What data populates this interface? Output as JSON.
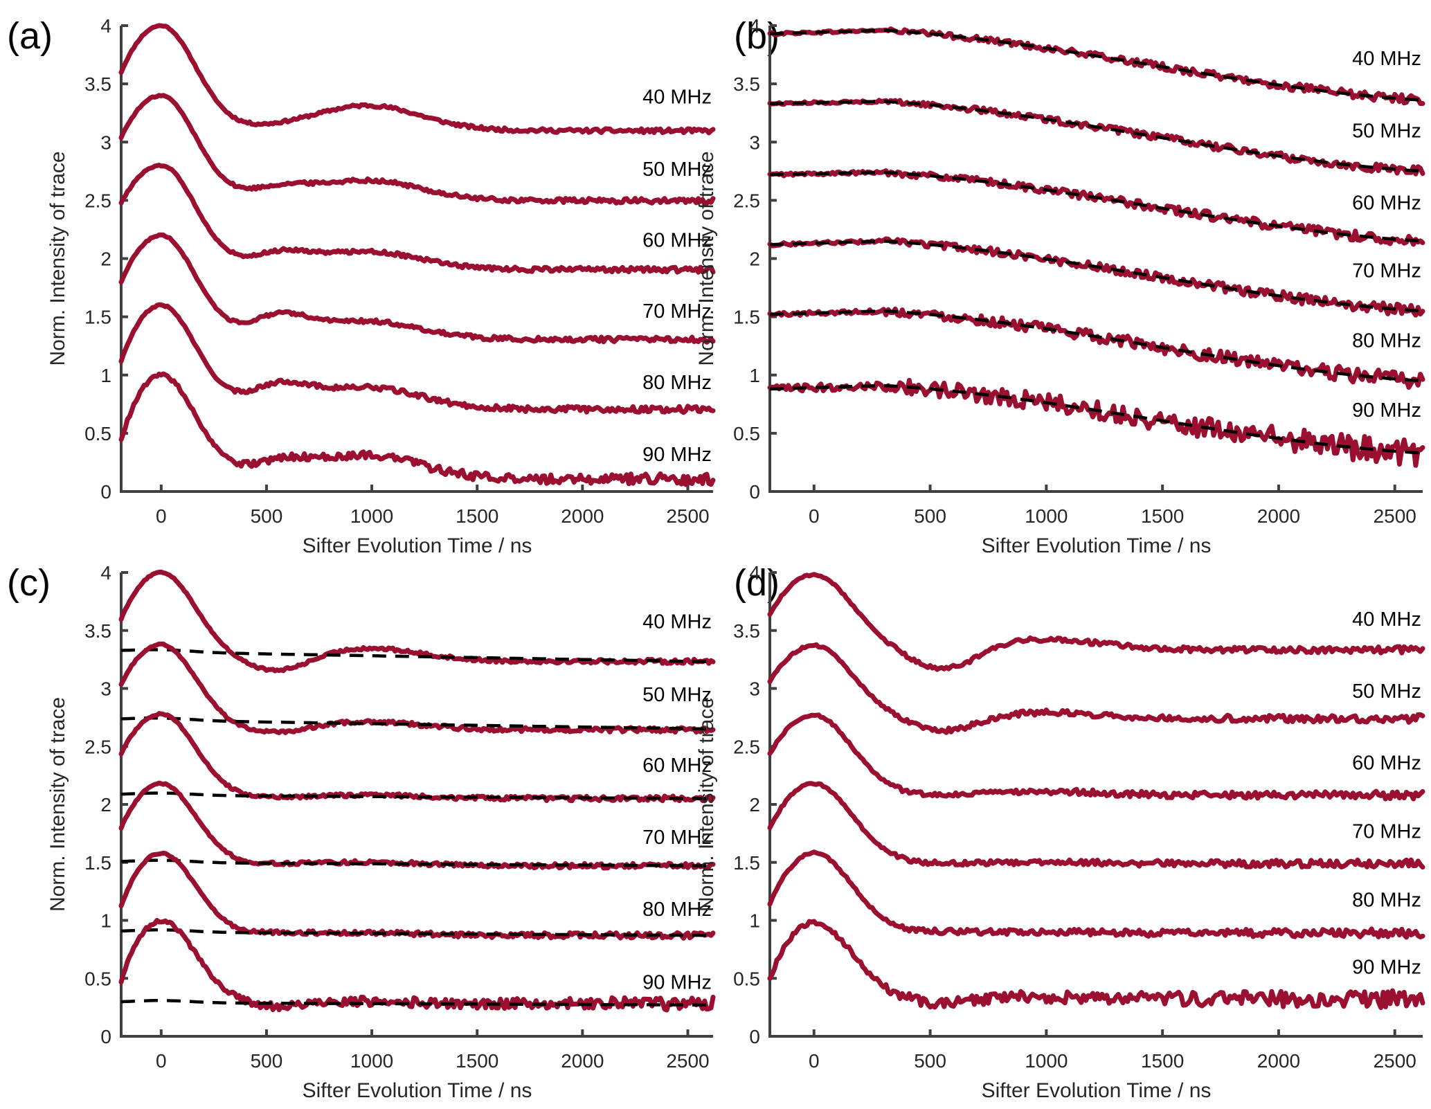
{
  "figure": {
    "panel_labels": [
      "(a)",
      "(b)",
      "(c)",
      "(d)"
    ],
    "colors": {
      "trace": "#9b1030",
      "fit": "#000000",
      "axis": "#404040"
    }
  },
  "chart_data": [
    {
      "panel": "(a)",
      "type": "line",
      "title": "",
      "xlabel": "Sifter Evolution Time / ns",
      "ylabel": "Norm. Intensity of trace",
      "xlim": [
        -190,
        2620
      ],
      "ylim": [
        0,
        4
      ],
      "xticks": [
        0,
        500,
        1000,
        1500,
        2000,
        2500
      ],
      "xtick_labels": [
        "0",
        "500",
        "1000",
        "1500",
        "2000",
        "2500"
      ],
      "yticks": [
        0,
        0.5,
        1,
        1.5,
        2,
        2.5,
        3,
        3.5,
        4
      ],
      "ytick_labels": [
        "0",
        "0.5",
        "1",
        "1.5",
        "2",
        "2.5",
        "3",
        "3.5",
        "4"
      ],
      "grid": false,
      "has_fit": false,
      "series": [
        {
          "name": "40 MHz",
          "offset": 3.0,
          "start": 3.6,
          "peak": 4.0,
          "tail": 3.09,
          "dip": 3.1,
          "bump": 3.3,
          "noise": 0.01
        },
        {
          "name": "50 MHz",
          "offset": 2.4,
          "start": 3.04,
          "peak": 3.4,
          "tail": 2.49,
          "dip": 2.58,
          "bump": 2.66,
          "noise": 0.012
        },
        {
          "name": "60 MHz",
          "offset": 1.8,
          "start": 2.48,
          "peak": 2.8,
          "tail": 1.9,
          "dip": 2.02,
          "bump": 2.05,
          "noise": 0.012
        },
        {
          "name": "70 MHz",
          "offset": 1.2,
          "start": 1.8,
          "peak": 2.2,
          "tail": 1.3,
          "dip": 1.48,
          "bump": 1.45,
          "noise": 0.012
        },
        {
          "name": "80 MHz",
          "offset": 0.6,
          "start": 1.12,
          "peak": 1.6,
          "tail": 0.7,
          "dip": 0.88,
          "bump": 0.88,
          "noise": 0.015
        },
        {
          "name": "90 MHz",
          "offset": 0.0,
          "start": 0.45,
          "peak": 1.0,
          "tail": 0.1,
          "dip": 0.22,
          "bump": 0.3,
          "noise": 0.025
        }
      ],
      "label_y": [
        3.39,
        2.77,
        2.16,
        1.55,
        0.94,
        0.32
      ]
    },
    {
      "panel": "(b)",
      "type": "line",
      "title": "",
      "xlabel": "Sifter Evolution Time / ns",
      "ylabel": "Norm. Intensity of trace",
      "xlim": [
        -190,
        2620
      ],
      "ylim": [
        0,
        4
      ],
      "xticks": [
        0,
        500,
        1000,
        1500,
        2000,
        2500
      ],
      "xtick_labels": [
        "0",
        "500",
        "1000",
        "1500",
        "2000",
        "2500"
      ],
      "yticks": [
        0,
        0.5,
        1,
        1.5,
        2,
        2.5,
        3,
        3.5,
        4
      ],
      "ytick_labels": [
        "0",
        "0.5",
        "1",
        "1.5",
        "2",
        "2.5",
        "3",
        "3.5",
        "4"
      ],
      "grid": false,
      "has_fit": true,
      "series": [
        {
          "name": "40 MHz",
          "start": 3.93,
          "plateau": 3.96,
          "end": 3.36,
          "noise": 0.02
        },
        {
          "name": "50 MHz",
          "start": 3.33,
          "plateau": 3.35,
          "end": 2.75,
          "noise": 0.02
        },
        {
          "name": "60 MHz",
          "start": 2.72,
          "plateau": 2.74,
          "end": 2.15,
          "noise": 0.025
        },
        {
          "name": "70 MHz",
          "start": 2.12,
          "plateau": 2.15,
          "end": 1.55,
          "noise": 0.025
        },
        {
          "name": "80 MHz",
          "start": 1.52,
          "plateau": 1.55,
          "end": 0.95,
          "noise": 0.035
        },
        {
          "name": "90 MHz",
          "start": 0.88,
          "plateau": 0.91,
          "end": 0.33,
          "noise": 0.06
        }
      ],
      "label_y": [
        3.72,
        3.1,
        2.48,
        1.9,
        1.3,
        0.7
      ]
    },
    {
      "panel": "(c)",
      "type": "line",
      "title": "",
      "xlabel": "Sifter Evolution Time / ns",
      "ylabel": "Norm. Intensity of trace",
      "xlim": [
        -190,
        2620
      ],
      "ylim": [
        0,
        4
      ],
      "xticks": [
        0,
        500,
        1000,
        1500,
        2000,
        2500
      ],
      "xtick_labels": [
        "0",
        "500",
        "1000",
        "1500",
        "2000",
        "2500"
      ],
      "yticks": [
        0,
        0.5,
        1,
        1.5,
        2,
        2.5,
        3,
        3.5,
        4
      ],
      "ytick_labels": [
        "0",
        "0.5",
        "1",
        "1.5",
        "2",
        "2.5",
        "3",
        "3.5",
        "4"
      ],
      "grid": false,
      "has_fit": true,
      "series": [
        {
          "name": "40 MHz",
          "start": 3.6,
          "peak": 4.0,
          "tail": 3.23,
          "dip": 3.12,
          "bump": 3.34,
          "fit_start": 3.32,
          "fit_end": 3.23,
          "noise": 0.01
        },
        {
          "name": "50 MHz",
          "start": 3.04,
          "peak": 3.38,
          "tail": 2.64,
          "dip": 2.6,
          "bump": 2.71,
          "fit_start": 2.73,
          "fit_end": 2.65,
          "noise": 0.012
        },
        {
          "name": "60 MHz",
          "start": 2.44,
          "peak": 2.78,
          "tail": 2.05,
          "dip": 2.05,
          "bump": 2.08,
          "fit_start": 2.08,
          "fit_end": 2.05,
          "noise": 0.012
        },
        {
          "name": "70 MHz",
          "start": 1.8,
          "peak": 2.18,
          "tail": 1.47,
          "dip": 1.48,
          "bump": 1.5,
          "fit_start": 1.5,
          "fit_end": 1.47,
          "noise": 0.012
        },
        {
          "name": "80 MHz",
          "start": 1.13,
          "peak": 1.58,
          "tail": 0.87,
          "dip": 0.89,
          "bump": 0.89,
          "fit_start": 0.9,
          "fit_end": 0.87,
          "noise": 0.014
        },
        {
          "name": "90 MHz",
          "start": 0.48,
          "peak": 1.0,
          "tail": 0.28,
          "dip": 0.25,
          "bump": 0.3,
          "fit_start": 0.29,
          "fit_end": 0.27,
          "noise": 0.03
        }
      ],
      "label_y": [
        3.58,
        2.95,
        2.34,
        1.72,
        1.1,
        0.47
      ]
    },
    {
      "panel": "(d)",
      "type": "line",
      "title": "",
      "xlabel": "Sifter Evolution Time / ns",
      "ylabel": "Norm. Intensity of trace",
      "xlim": [
        -190,
        2620
      ],
      "ylim": [
        0,
        4
      ],
      "xticks": [
        0,
        500,
        1000,
        1500,
        2000,
        2500
      ],
      "xtick_labels": [
        "0",
        "500",
        "1000",
        "1500",
        "2000",
        "2500"
      ],
      "yticks": [
        0,
        0.5,
        1,
        1.5,
        2,
        2.5,
        3,
        3.5,
        4
      ],
      "ytick_labels": [
        "0",
        "0.5",
        "1",
        "1.5",
        "2",
        "2.5",
        "3",
        "3.5",
        "4"
      ],
      "grid": false,
      "has_fit": false,
      "series": [
        {
          "name": "40 MHz",
          "start": 3.64,
          "peak": 3.98,
          "tail": 3.33,
          "dip": 3.14,
          "bump": 3.42,
          "noise": 0.015
        },
        {
          "name": "50 MHz",
          "start": 3.06,
          "peak": 3.37,
          "tail": 2.74,
          "dip": 2.62,
          "bump": 2.79,
          "noise": 0.018
        },
        {
          "name": "60 MHz",
          "start": 2.44,
          "peak": 2.77,
          "tail": 2.08,
          "dip": 2.07,
          "bump": 2.11,
          "noise": 0.018
        },
        {
          "name": "70 MHz",
          "start": 1.8,
          "peak": 2.18,
          "tail": 1.49,
          "dip": 1.49,
          "bump": 1.5,
          "noise": 0.018
        },
        {
          "name": "80 MHz",
          "start": 1.14,
          "peak": 1.58,
          "tail": 0.89,
          "dip": 0.9,
          "bump": 0.9,
          "noise": 0.02
        },
        {
          "name": "90 MHz",
          "start": 0.5,
          "peak": 0.98,
          "tail": 0.32,
          "dip": 0.28,
          "bump": 0.34,
          "noise": 0.04
        }
      ],
      "label_y": [
        3.6,
        2.98,
        2.36,
        1.77,
        1.18,
        0.6
      ]
    }
  ]
}
